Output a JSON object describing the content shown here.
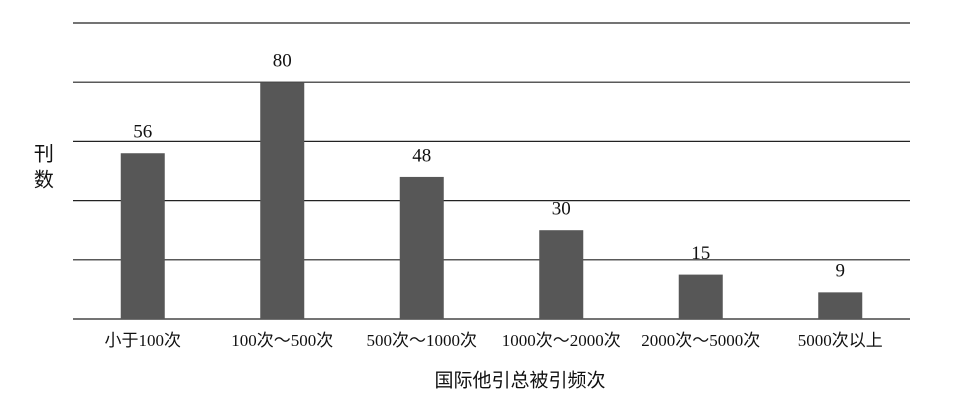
{
  "chart_data": {
    "type": "bar",
    "x_label": "国际他引总被引频次",
    "y_label": "刊数",
    "categories": [
      "小于100次",
      "100次～500次",
      "500次～1000次",
      "1000次～2000次",
      "2000次～5000次",
      "5000次以上"
    ],
    "values": [
      56,
      80,
      48,
      30,
      15,
      9
    ],
    "color": "#575757",
    "ylim": [
      0,
      100
    ],
    "yticks": [
      0,
      20,
      40,
      60,
      80,
      100
    ],
    "grid": true
  }
}
